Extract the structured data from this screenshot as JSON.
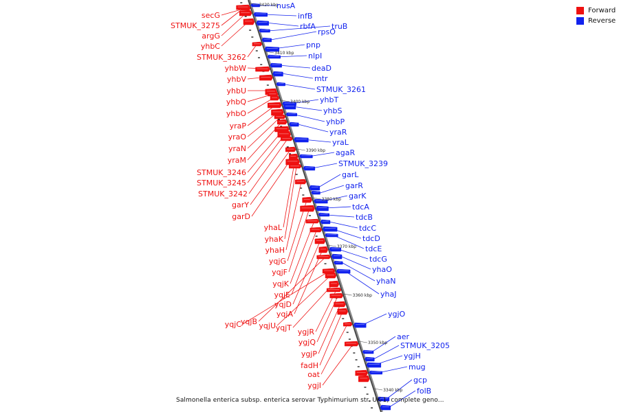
{
  "legend": {
    "forward_label": "Forward",
    "reverse_label": "Reverse",
    "forward_color": "#ee1111",
    "reverse_color": "#1122ee"
  },
  "caption": "Salmonella enterica subsp. enterica serovar Typhimurium str. UK-1, complete geno...",
  "kbp_marks": [
    "3420 kbp",
    "3410 kbp",
    "3400 kbp",
    "3390 kbp",
    "3380 kbp",
    "3370 kbp",
    "3360 kbp",
    "3350 kbp",
    "3340 kbp"
  ],
  "forward_genes": [
    "secG",
    "STMUK_3275",
    "argG",
    "yhbC",
    "STMUK_3262",
    "yhbW",
    "yhbV",
    "yhbU",
    "yhbQ",
    "yhbO",
    "yraP",
    "yraO",
    "yraN",
    "yraM",
    "STMUK_3246",
    "STMUK_3245",
    "STMUK_3242",
    "garY",
    "garD",
    "yhaL",
    "yhaK",
    "yhaH",
    "yqjG",
    "yqjF",
    "yqjK",
    "yqjE",
    "yqjD",
    "yqjA",
    "yqjB",
    "yqjC",
    "yqjU",
    "yqjT",
    "ygjR",
    "ygjQ",
    "ygjP",
    "fadH",
    "oat",
    "ygjI"
  ],
  "reverse_genes": [
    "nusA",
    "infB",
    "rbfA",
    "truB",
    "rpsO",
    "pnp",
    "nlpI",
    "deaD",
    "mtr",
    "STMUK_3261",
    "yhbT",
    "yhbS",
    "yhbP",
    "yraR",
    "yraL",
    "agaR",
    "STMUK_3239",
    "garL",
    "garR",
    "garK",
    "tdcA",
    "tdcB",
    "tdcC",
    "tdcD",
    "tdcE",
    "tdcG",
    "yhaO",
    "yhaN",
    "yhaJ",
    "ygjO",
    "aer",
    "STMUK_3205",
    "ygjH",
    "mug",
    "gcp",
    "folB"
  ]
}
